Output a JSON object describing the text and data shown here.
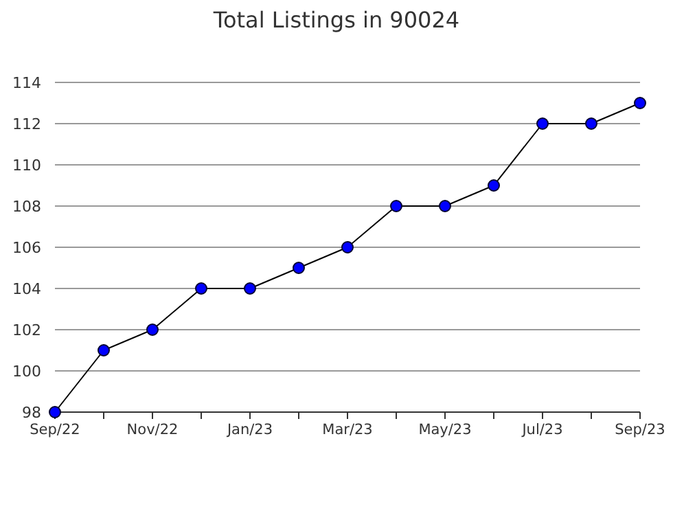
{
  "chart_data": {
    "type": "line",
    "title": "Total Listings in 90024",
    "categories": [
      "Sep/22",
      null,
      "Nov/22",
      null,
      "Jan/23",
      null,
      "Mar/23",
      null,
      "May/23",
      null,
      "Jul/23",
      null,
      "Sep/23"
    ],
    "series": [
      {
        "color": "#0000ff",
        "values": [
          98,
          101,
          102,
          104,
          104,
          105,
          106,
          108,
          108,
          109,
          112,
          112,
          113
        ]
      }
    ],
    "ylim": [
      98,
      114
    ],
    "yticks": [
      98,
      100,
      102,
      104,
      106,
      108,
      110,
      112,
      114
    ],
    "grid": "y",
    "marker": "circle",
    "line_style": "solid"
  }
}
